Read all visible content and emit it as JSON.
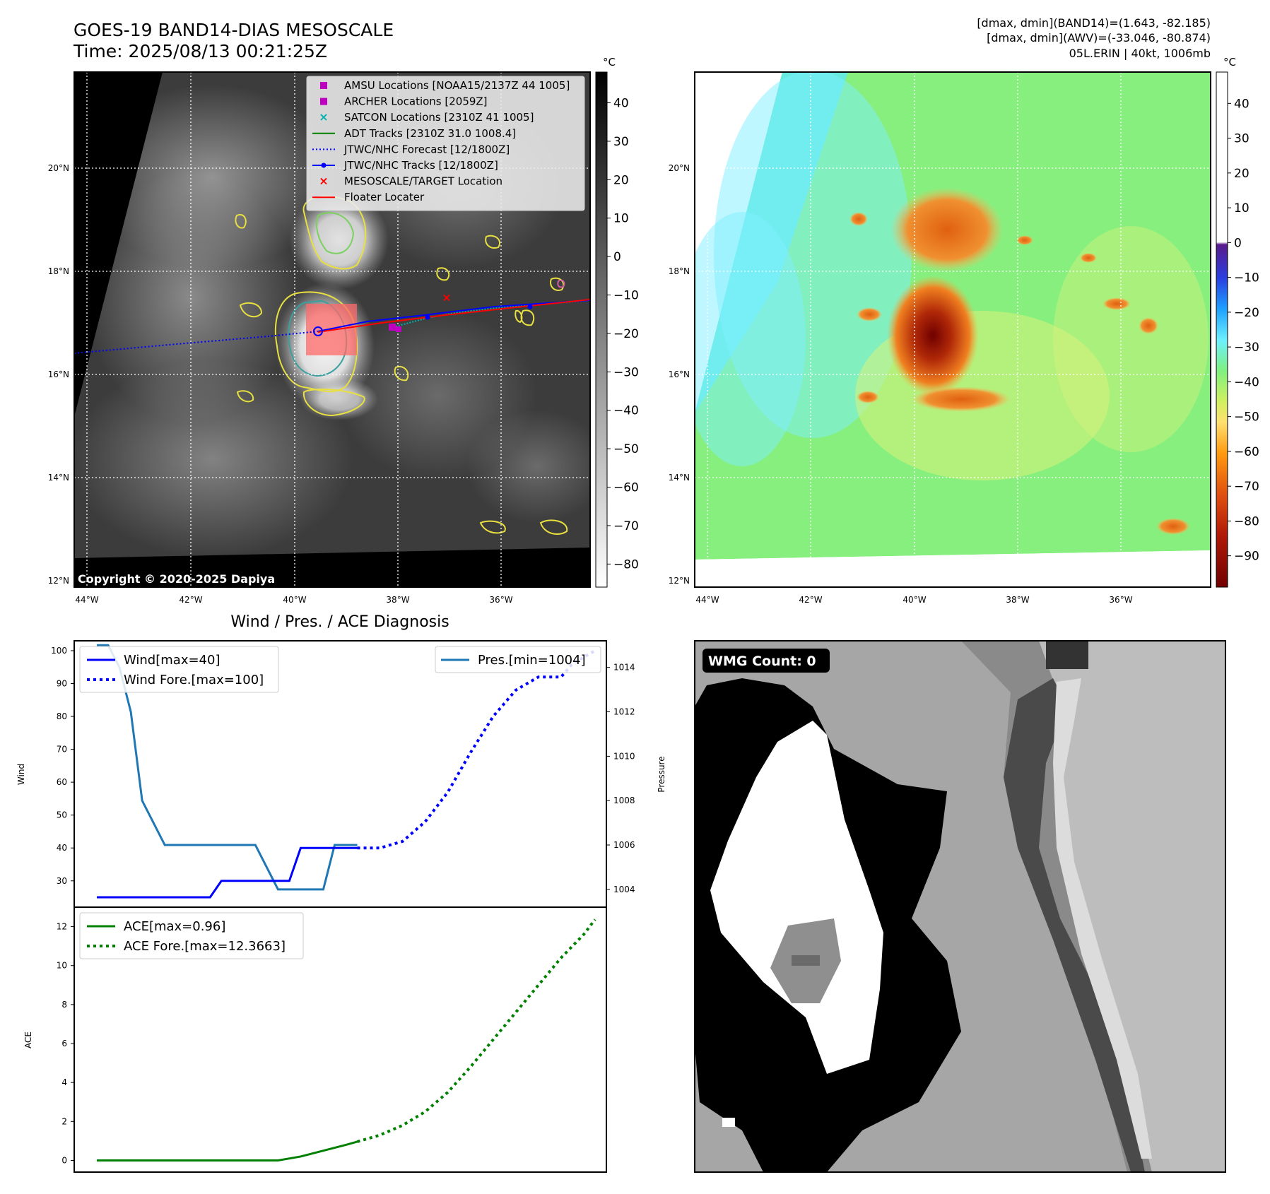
{
  "header": {
    "title": "GOES-19 BAND14-DIAS MESOSCALE",
    "time": "Time: 2025/08/13 00:21:25Z",
    "stats_band14": "[dmax, dmin](BAND14)=(1.643, -82.185)",
    "stats_awv": "[dmax, dmin](AWV)=(-33.046, -80.874)",
    "storm_info": "05L.ERIN | 40kt, 1006mb"
  },
  "ir_panel": {
    "copyright": "Copyright © 2020-2025 Dapiya",
    "lat_labels": [
      "20°N",
      "18°N",
      "16°N",
      "14°N",
      "12°N"
    ],
    "lon_labels": [
      "44°W",
      "42°W",
      "40°W",
      "38°W",
      "36°W"
    ],
    "colorbar_unit": "°C",
    "colorbar_ticks": [
      "40",
      "30",
      "20",
      "10",
      "0",
      "−10",
      "−20",
      "−30",
      "−40",
      "−50",
      "−60",
      "−70",
      "−80"
    ],
    "colorbar_values": [
      40,
      30,
      20,
      10,
      0,
      -10,
      -20,
      -30,
      -40,
      -50,
      -60,
      -70,
      -80
    ],
    "colorbar_range": [
      48,
      -86
    ],
    "legend": [
      {
        "label": "AMSU Locations [NOAA15/2137Z 44 1005]",
        "marker": "square",
        "color": "#c000c0"
      },
      {
        "label": "ARCHER Locations [2059Z]",
        "marker": "square",
        "color": "#c000c0"
      },
      {
        "label": "SATCON Locations [2310Z 41 1005]",
        "marker": "x",
        "color": "#00b0b0"
      },
      {
        "label": "ADT Tracks [2310Z 31.0 1008.4]",
        "marker": "line",
        "color": "#008000"
      },
      {
        "label": "JTWC/NHC Forecast [12/1800Z]",
        "marker": "dotted",
        "color": "#0000ff"
      },
      {
        "label": "JTWC/NHC Tracks [12/1800Z]",
        "marker": "line-dot",
        "color": "#0000ff"
      },
      {
        "label": "MESOSCALE/TARGET Location",
        "marker": "x",
        "color": "#ff0000"
      },
      {
        "label": "Floater Locater",
        "marker": "line",
        "color": "#ff0000"
      }
    ]
  },
  "awv_panel": {
    "lat_labels": [
      "20°N",
      "18°N",
      "16°N",
      "14°N",
      "12°N"
    ],
    "lon_labels": [
      "44°W",
      "42°W",
      "40°W",
      "38°W",
      "36°W"
    ],
    "colorbar_unit": "°C",
    "colorbar_ticks": [
      "40",
      "30",
      "20",
      "10",
      "0",
      "−10",
      "−20",
      "−30",
      "−40",
      "−50",
      "−60",
      "−70",
      "−80",
      "−90"
    ],
    "colorbar_values": [
      40,
      30,
      20,
      10,
      0,
      -10,
      -20,
      -30,
      -40,
      -50,
      -60,
      -70,
      -80,
      -90
    ],
    "colorbar_range": [
      49,
      -99
    ]
  },
  "wmg_panel": {
    "label": "WMG Count: 0"
  },
  "chart_data": [
    {
      "type": "line",
      "title": "Wind / Pres. / ACE Diagnosis",
      "ylabel": "Wind",
      "ylim": [
        22,
        103
      ],
      "yticks": [
        30,
        40,
        50,
        60,
        70,
        80,
        90,
        100
      ],
      "series": [
        {
          "name": "Wind[max=40]",
          "color": "#0000ff",
          "style": "solid",
          "x": [
            0,
            1,
            2,
            3,
            4,
            5,
            6,
            7,
            8,
            9,
            10,
            11,
            12,
            13,
            14,
            15,
            16,
            17,
            18,
            19,
            20,
            21,
            22,
            23
          ],
          "y": [
            25,
            25,
            25,
            25,
            25,
            25,
            25,
            25,
            25,
            25,
            25,
            30,
            30,
            30,
            30,
            30,
            30,
            30,
            40,
            40,
            40,
            40,
            40,
            40
          ]
        },
        {
          "name": "Wind Fore.[max=100]",
          "color": "#0000ff",
          "style": "dotted",
          "x": [
            23,
            25,
            27,
            29,
            31,
            33,
            35,
            37,
            39,
            41,
            42,
            44
          ],
          "y": [
            40,
            40,
            42,
            48,
            57,
            69,
            80,
            88,
            92,
            92,
            96,
            100
          ]
        }
      ],
      "secondary": {
        "ylabel": "Pressure",
        "ylim": [
          1003.2,
          1015.2
        ],
        "yticks": [
          1004,
          1006,
          1008,
          1010,
          1012,
          1014
        ],
        "series": [
          {
            "name": "Pres.[min=1004]",
            "color": "#1f77b4",
            "style": "solid",
            "x": [
              0,
              1,
              2,
              3,
              4,
              5,
              6,
              7,
              8,
              9,
              10,
              11,
              12,
              13,
              14,
              15,
              16,
              17,
              18,
              19,
              20,
              21,
              22,
              23
            ],
            "y": [
              1015,
              1015,
              1014,
              1012,
              1008,
              1007,
              1006,
              1006,
              1006,
              1006,
              1006,
              1006,
              1006,
              1006,
              1006,
              1005,
              1004,
              1004,
              1004,
              1004,
              1004,
              1006,
              1006,
              1006
            ]
          }
        ]
      },
      "xlim": [
        -2,
        45
      ]
    },
    {
      "type": "line",
      "ylabel": "ACE",
      "ylim": [
        -0.6,
        13
      ],
      "yticks": [
        0,
        2,
        4,
        6,
        8,
        10,
        12
      ],
      "series": [
        {
          "name": "ACE[max=0.96]",
          "color": "#008000",
          "style": "solid",
          "x": [
            0,
            2,
            4,
            6,
            8,
            10,
            12,
            14,
            16,
            18,
            20,
            22,
            23
          ],
          "y": [
            0,
            0,
            0,
            0,
            0,
            0,
            0,
            0,
            0,
            0.2,
            0.5,
            0.8,
            0.96
          ]
        },
        {
          "name": "ACE Fore.[max=12.3663]",
          "color": "#008000",
          "style": "dotted",
          "x": [
            23,
            25,
            27,
            29,
            31,
            33,
            35,
            37,
            39,
            41,
            43,
            44
          ],
          "y": [
            0.96,
            1.3,
            1.8,
            2.5,
            3.5,
            4.8,
            6.2,
            7.6,
            9.0,
            10.4,
            11.6,
            12.3663
          ]
        }
      ],
      "xlim": [
        -2,
        45
      ]
    }
  ]
}
